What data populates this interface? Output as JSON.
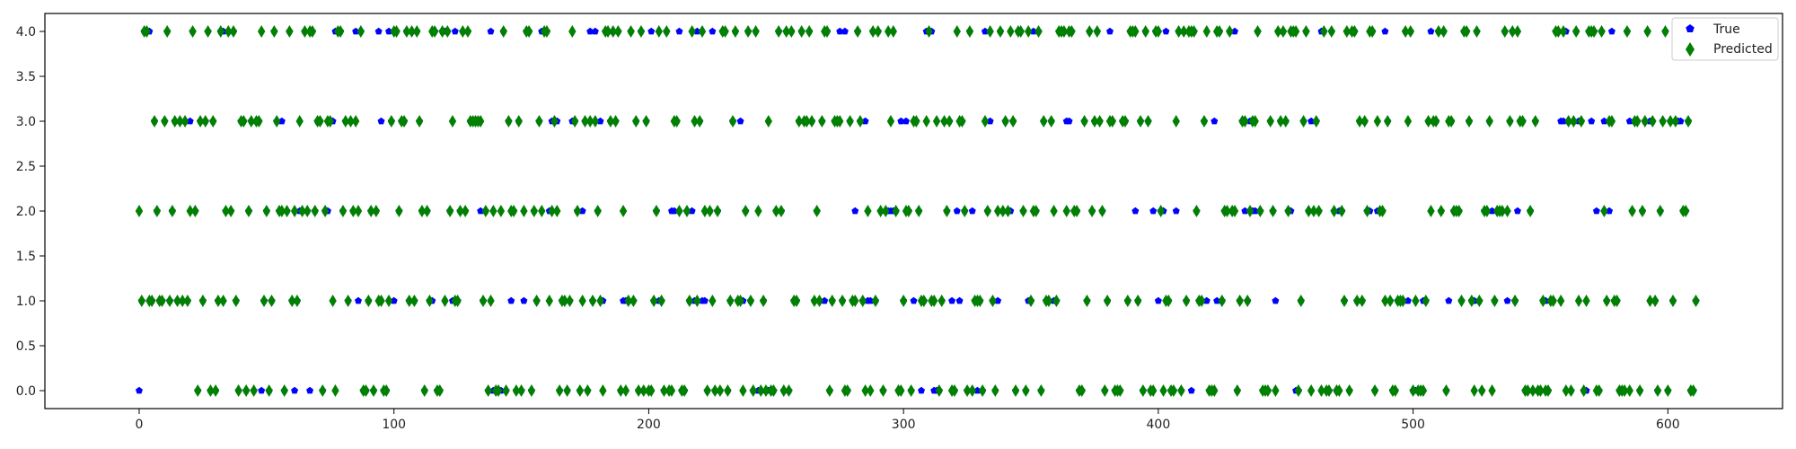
{
  "chart_data": {
    "type": "scatter",
    "title": "",
    "xlabel": "",
    "ylabel": "",
    "xlim": [
      -37,
      645
    ],
    "ylim": [
      -0.2,
      4.2
    ],
    "xticks": [
      0,
      100,
      200,
      300,
      400,
      500,
      600
    ],
    "xtick_labels": [
      "0",
      "100",
      "200",
      "300",
      "400",
      "500",
      "600"
    ],
    "yticks": [
      0.0,
      0.5,
      1.0,
      1.5,
      2.0,
      2.5,
      3.0,
      3.5,
      4.0
    ],
    "ytick_labels": [
      "0.0",
      "0.5",
      "1.0",
      "1.5",
      "2.0",
      "2.5",
      "3.0",
      "3.5",
      "4.0"
    ],
    "grid": false,
    "legend_position": "top-right",
    "n_points": 612,
    "series": [
      {
        "name": "True",
        "color": "#0000ff",
        "marker": "pentagon",
        "values": "see script"
      },
      {
        "name": "Predicted",
        "color": "#008000",
        "marker": "thin_diamond",
        "values": "see script"
      }
    ]
  }
}
